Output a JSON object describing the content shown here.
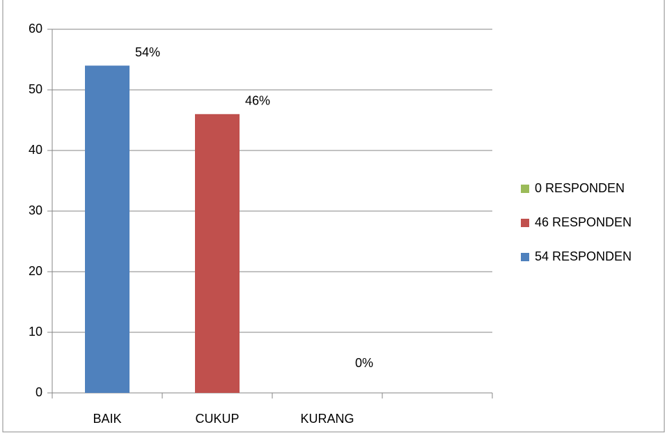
{
  "chart_data": {
    "type": "bar",
    "categories": [
      "BAIK",
      "CUKUP",
      "KURANG",
      null
    ],
    "series": [
      {
        "name": "0 RESPONDEN",
        "color": "#9bbb59",
        "values": [
          null,
          null,
          0,
          null
        ],
        "value_labels": [
          null,
          null,
          "0%",
          null
        ]
      },
      {
        "name": "46 RESPONDEN",
        "color": "#c0504d",
        "values": [
          null,
          46,
          null,
          null
        ],
        "value_labels": [
          null,
          "46%",
          null,
          null
        ]
      },
      {
        "name": "54 RESPONDEN",
        "color": "#4f81bd",
        "values": [
          54,
          null,
          null,
          null
        ],
        "value_labels": [
          "54%",
          null,
          null,
          null
        ]
      }
    ],
    "ylim": [
      0,
      60
    ],
    "yticks": [
      0,
      10,
      20,
      30,
      40,
      50,
      60
    ],
    "grid": true,
    "legend": "right"
  }
}
